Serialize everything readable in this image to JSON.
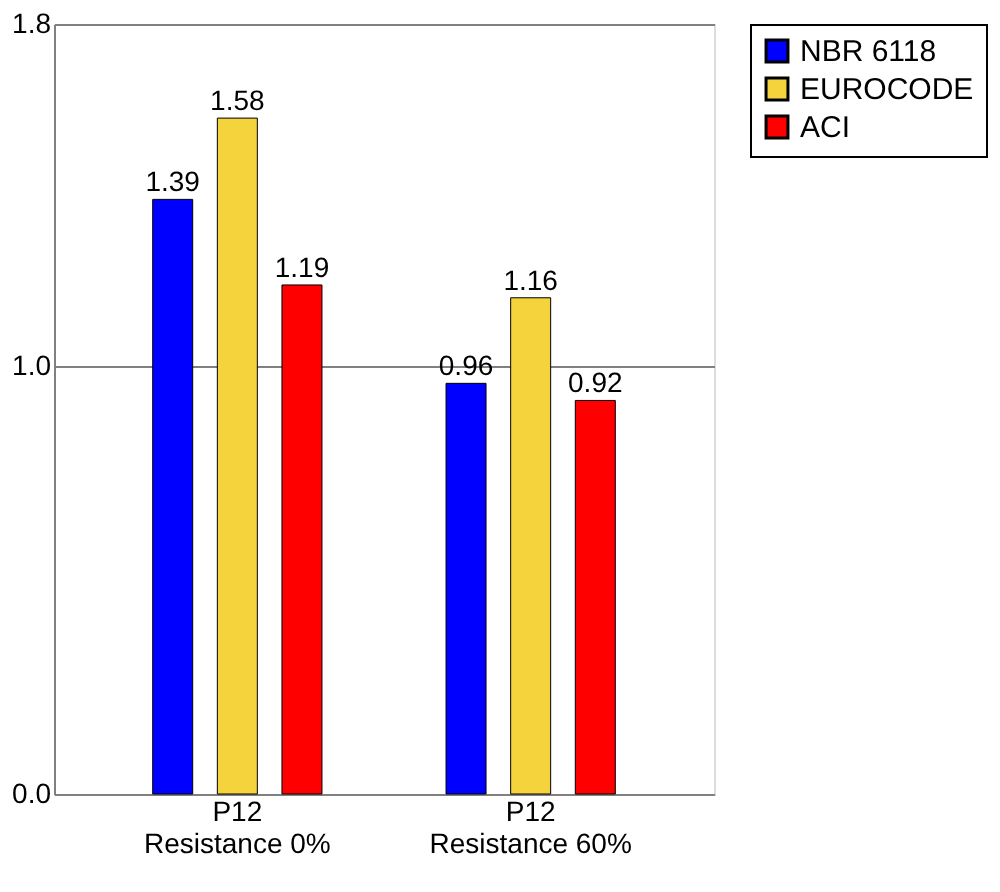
{
  "chart_data": {
    "type": "bar",
    "categories": [
      "P12\nResistance 0%",
      "P12\nResistance 60%"
    ],
    "series": [
      {
        "name": "NBR 6118",
        "color": "#0000ff",
        "values": [
          1.39,
          0.96
        ]
      },
      {
        "name": "EUROCODE",
        "color": "#f5d33c",
        "values": [
          1.58,
          1.16
        ]
      },
      {
        "name": "ACI",
        "color": "#ff0000",
        "values": [
          1.19,
          0.92
        ]
      }
    ],
    "ylim": [
      0,
      1.8
    ],
    "yticks": [
      {
        "value": 0,
        "label": "0.0"
      },
      {
        "value": 1.0,
        "label": "1.0"
      },
      {
        "value": 1.8,
        "label": "1.8"
      }
    ],
    "grid": "y",
    "legend": "right",
    "data_labels": true
  }
}
